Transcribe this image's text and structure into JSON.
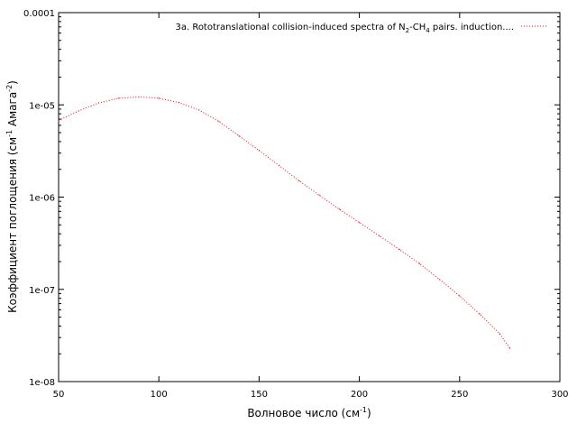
{
  "chart_data": {
    "type": "line",
    "xlabel": "Волновое число (см",
    "xlabel_sup": "-1",
    "xlabel_tail": ")",
    "ylabel": "Коэффициент поглощения (см",
    "ylabel_sup1": "-1",
    "ylabel_mid": " Амага",
    "ylabel_sup2": "-2",
    "ylabel_tail": ")",
    "xlim": [
      50,
      300
    ],
    "ylim": [
      1e-08,
      0.0001
    ],
    "yscale": "log",
    "grid": false,
    "legend_position": "top-right",
    "x_ticks": [
      50,
      100,
      150,
      200,
      250,
      300
    ],
    "x_tick_labels": [
      "50",
      "100",
      "150",
      "200",
      "250",
      "300"
    ],
    "y_ticks": [
      1e-08,
      1e-07,
      1e-06,
      1e-05,
      0.0001
    ],
    "y_tick_labels": [
      "1e-08",
      "1e-07",
      "1e-06",
      "1e-05",
      "0.0001"
    ],
    "series": [
      {
        "name_parts": [
          "3a. Rototranslational collision-induced spectra of N",
          "2",
          "-CH",
          "4",
          " pairs. induction...."
        ],
        "color": "#ff0000",
        "style": "dotted",
        "x": [
          50,
          60,
          70,
          80,
          90,
          100,
          110,
          120,
          130,
          140,
          150,
          160,
          170,
          180,
          190,
          200,
          210,
          220,
          230,
          240,
          250,
          260,
          270,
          275
        ],
        "y": [
          6.8e-06,
          8.6e-06,
          1.05e-05,
          1.18e-05,
          1.22e-05,
          1.18e-05,
          1.06e-05,
          8.8e-06,
          6.6e-06,
          4.6e-06,
          3.2e-06,
          2.2e-06,
          1.5e-06,
          1.05e-06,
          7.4e-07,
          5.3e-07,
          3.8e-07,
          2.7e-07,
          1.9e-07,
          1.28e-07,
          8.5e-08,
          5.4e-08,
          3.3e-08,
          2.3e-08
        ]
      }
    ]
  }
}
